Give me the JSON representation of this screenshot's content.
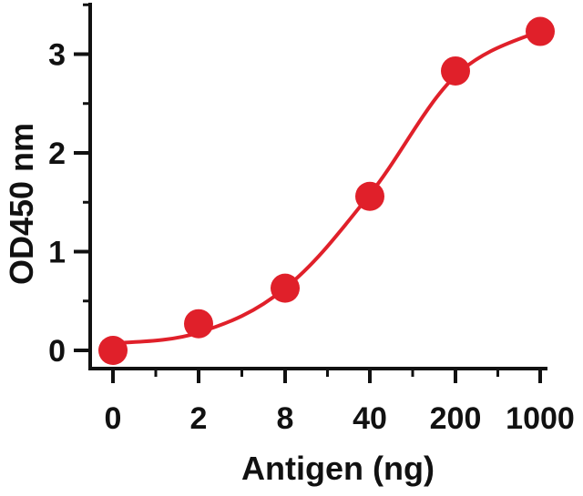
{
  "chart_data": {
    "type": "scatter",
    "title": "",
    "xlabel": "Antigen (ng)",
    "ylabel": "OD450 nm",
    "x_scale": "categorical (log-spaced dilution series)",
    "categories": [
      "0",
      "2",
      "8",
      "40",
      "200",
      "1000"
    ],
    "xticks": [
      "0",
      "2",
      "8",
      "40",
      "200",
      "1000"
    ],
    "yticks": [
      "0",
      "1",
      "2",
      "3"
    ],
    "ylim": [
      -0.2,
      3.55
    ],
    "grid": false,
    "legend": "none",
    "series": [
      {
        "color": "#e0202a",
        "values": [
          0.0,
          0.27,
          0.63,
          1.56,
          2.83,
          3.23
        ],
        "fit_curve": "sigmoidal",
        "fit_curve_values": [
          0.07,
          0.18,
          0.63,
          1.58,
          2.78,
          3.24
        ]
      }
    ],
    "colors": {
      "series": "#e0202a",
      "axis": "#111111"
    }
  }
}
